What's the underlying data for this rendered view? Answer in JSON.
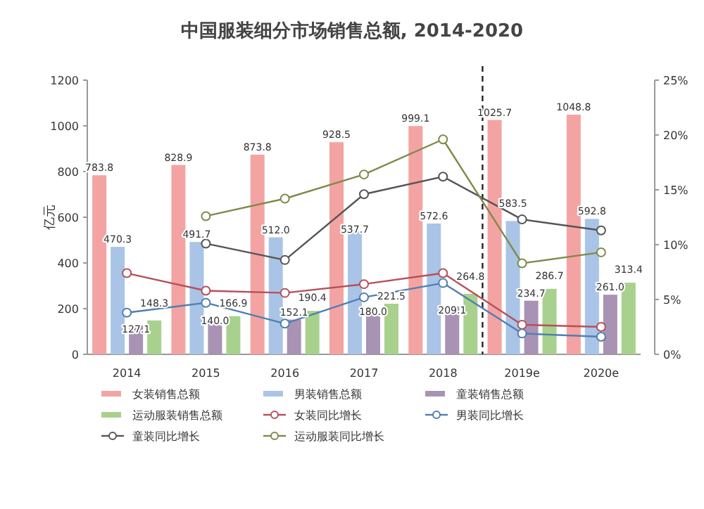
{
  "chart_data": {
    "type": "bar",
    "title": "中国服装细分市场销售总额, 2014-2020",
    "ylabel": "亿元",
    "categories": [
      "2014",
      "2015",
      "2016",
      "2017",
      "2018",
      "2019e",
      "2020e"
    ],
    "series": [
      {
        "name": "女装销售总额",
        "color": "#f4a3a3",
        "values": [
          783.8,
          828.9,
          873.8,
          928.5,
          999.1,
          1025.7,
          1048.8
        ],
        "value_labels": [
          "783.8",
          "828.9",
          "873.8",
          "928.5",
          "999.1",
          "1025.7",
          "1048.8"
        ]
      },
      {
        "name": "男装销售总额",
        "color": "#a9c4e6",
        "values": [
          470.3,
          491.7,
          512.0,
          537.7,
          572.6,
          583.5,
          592.8
        ],
        "value_labels": [
          "470.3",
          "491.7",
          "512.0",
          "537.7",
          "572.6",
          "583.5",
          "592.8"
        ]
      },
      {
        "name": "童装销售总额",
        "color": "#a993b4",
        "values": [
          127.1,
          140.0,
          152.1,
          180.0,
          209.1,
          234.7,
          261.0
        ],
        "value_labels": [
          "127.1",
          "140.0",
          "152.1",
          "180.0",
          "209.1",
          "234.7",
          "261.0"
        ]
      },
      {
        "name": "运动服装销售总额",
        "color": "#a9d18e",
        "values": [
          148.3,
          166.9,
          190.4,
          221.5,
          264.8,
          286.7,
          313.4
        ],
        "value_labels": [
          "148.3",
          "166.9",
          "190.4",
          "221.5",
          "264.8",
          "286.7",
          "313.4"
        ]
      },
      {
        "name": "女装同比增长",
        "type": "line",
        "axis": "y2",
        "color": "#b5505a",
        "values": [
          7.4,
          5.8,
          5.6,
          6.4,
          7.4,
          2.7,
          2.5
        ]
      },
      {
        "name": "男装同比增长",
        "type": "line",
        "axis": "y2",
        "color": "#4f7fb0",
        "values": [
          3.8,
          4.7,
          2.8,
          5.2,
          6.5,
          1.9,
          1.6
        ]
      },
      {
        "name": "童装同比增长",
        "type": "line",
        "axis": "y2",
        "color": "#555555",
        "values": [
          null,
          10.1,
          8.6,
          14.6,
          16.2,
          12.3,
          11.3
        ]
      },
      {
        "name": "运动服装同比增长",
        "type": "line",
        "axis": "y2",
        "color": "#7f8a4a",
        "values": [
          null,
          12.6,
          14.2,
          16.4,
          19.6,
          8.3,
          9.3
        ]
      }
    ],
    "ylim": [
      0,
      1200
    ],
    "yticks": [
      0,
      200,
      400,
      600,
      800,
      1000,
      1200
    ],
    "y2lim": [
      0,
      25
    ],
    "y2ticks": [
      {
        "value": 0,
        "label": "0%"
      },
      {
        "value": 5,
        "label": "5%"
      },
      {
        "value": 10,
        "label": "10%"
      },
      {
        "value": 15,
        "label": "15%"
      },
      {
        "value": 20,
        "label": "20%"
      },
      {
        "value": 25,
        "label": "25%"
      }
    ],
    "marker": "circle",
    "legend": "bottom",
    "grid": false
  }
}
